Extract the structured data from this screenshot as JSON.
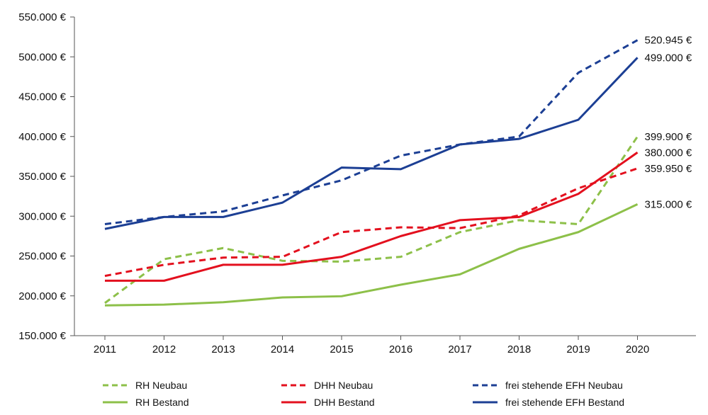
{
  "chart_data": {
    "type": "line",
    "title": "",
    "xlabel": "",
    "ylabel": "",
    "x": [
      "2011",
      "2012",
      "2013",
      "2014",
      "2015",
      "2016",
      "2017",
      "2018",
      "2019",
      "2020"
    ],
    "ylim": [
      150000,
      550000
    ],
    "y_ticks": [
      {
        "value": 550000,
        "label": "550.000 €"
      },
      {
        "value": 500000,
        "label": "500.000 €"
      },
      {
        "value": 450000,
        "label": "450.000 €"
      },
      {
        "value": 400000,
        "label": "400.000 €"
      },
      {
        "value": 350000,
        "label": "350.000 €"
      },
      {
        "value": 300000,
        "label": "300.000 €"
      },
      {
        "value": 250000,
        "label": "250.000 €"
      },
      {
        "value": 200000,
        "label": "200.000 €"
      },
      {
        "value": 150000,
        "label": "150.000 €"
      }
    ],
    "grid": false,
    "legend_position": "bottom",
    "series": [
      {
        "name": "RH Neubau",
        "color": "#8dc049",
        "style": "dashed",
        "values": [
          191000,
          246000,
          260000,
          244000,
          243000,
          249000,
          280000,
          295000,
          290000,
          399900
        ],
        "end_label": "399.900 €"
      },
      {
        "name": "RH Bestand",
        "color": "#8dc049",
        "style": "solid",
        "values": [
          188000,
          189000,
          192000,
          198000,
          199500,
          214000,
          227000,
          259000,
          280000,
          315000
        ],
        "end_label": "315.000 €"
      },
      {
        "name": "DHH Neubau",
        "color": "#e3101e",
        "style": "dashed",
        "values": [
          225000,
          239000,
          248000,
          249000,
          280000,
          286000,
          285000,
          301000,
          335000,
          359950
        ],
        "end_label": "359.950 €"
      },
      {
        "name": "DHH Bestand",
        "color": "#e3101e",
        "style": "solid",
        "values": [
          219000,
          219000,
          239000,
          239000,
          249000,
          275000,
          295000,
          299000,
          328000,
          380000
        ],
        "end_label": "380.000 €"
      },
      {
        "name": "frei stehende EFH Neubau",
        "color": "#1c3f94",
        "style": "dashed",
        "values": [
          290000,
          299000,
          306000,
          326000,
          345000,
          376000,
          390000,
          400000,
          480000,
          520945
        ],
        "end_label": "520.945 €"
      },
      {
        "name": "frei stehende EFH Bestand",
        "color": "#1c3f94",
        "style": "solid",
        "values": [
          284000,
          299000,
          299000,
          317000,
          361000,
          359000,
          390000,
          397000,
          421000,
          499000
        ],
        "end_label": "499.000 €"
      }
    ]
  }
}
